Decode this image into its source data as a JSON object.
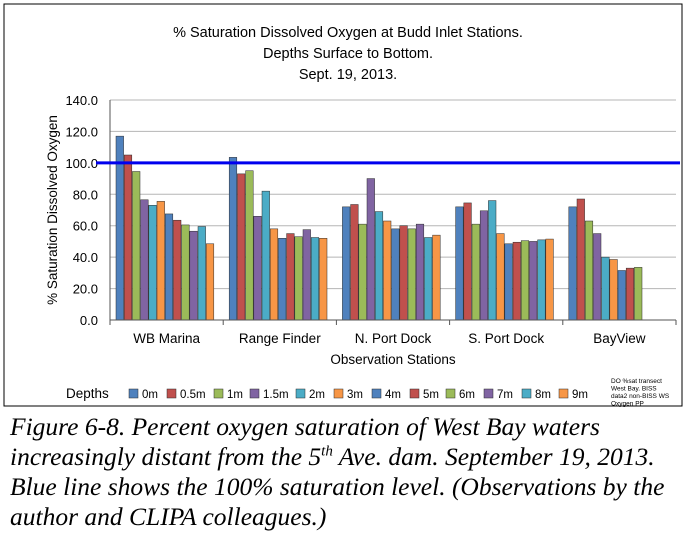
{
  "chart_data": {
    "type": "bar",
    "title_lines": [
      "% Saturation Dissolved Oxygen at Budd Inlet Stations.",
      "Depths Surface to Bottom.",
      "Sept. 19, 2013."
    ],
    "xlabel": "Observation Stations",
    "ylabel": "% Saturation Dissolved Oxygen",
    "ylim": [
      0,
      140
    ],
    "yticks": [
      "0.0",
      "20.0",
      "40.0",
      "60.0",
      "80.0",
      "100.0",
      "120.0",
      "140.0"
    ],
    "grid": true,
    "reference_line": {
      "value": 100,
      "color": "#0000ee"
    },
    "categories": [
      "WB Marina",
      "Range Finder",
      "N. Port Dock",
      "S. Port Dock",
      "BayView"
    ],
    "legend_title": "Depths",
    "legend_position": "bottom",
    "series": [
      {
        "name": "0m",
        "color": "#4f81bd",
        "values": [
          117,
          103.5,
          72,
          72,
          72
        ]
      },
      {
        "name": "0.5m",
        "color": "#c0504d",
        "values": [
          105,
          93,
          73.5,
          74.5,
          77
        ]
      },
      {
        "name": "1m",
        "color": "#9bbb59",
        "values": [
          94.5,
          95,
          61,
          61,
          63
        ]
      },
      {
        "name": "1.5m",
        "color": "#8064a2",
        "values": [
          76.5,
          66,
          90,
          69.5,
          55
        ]
      },
      {
        "name": "2m",
        "color": "#4bacc6",
        "values": [
          73,
          82,
          69,
          76,
          40
        ]
      },
      {
        "name": "3m",
        "color": "#f79646",
        "values": [
          75.5,
          58,
          63,
          55,
          38.5
        ]
      },
      {
        "name": "4m",
        "color": "#4f81bd",
        "values": [
          67.5,
          52,
          58,
          48.5,
          31.5
        ]
      },
      {
        "name": "5m",
        "color": "#c0504d",
        "values": [
          63.5,
          55,
          60,
          49.5,
          33
        ]
      },
      {
        "name": "6m",
        "color": "#9bbb59",
        "values": [
          60.5,
          53,
          58,
          50.5,
          33.5
        ]
      },
      {
        "name": "7m",
        "color": "#8064a2",
        "values": [
          56.5,
          57.5,
          61,
          50,
          null
        ]
      },
      {
        "name": "8m",
        "color": "#4bacc6",
        "values": [
          59.5,
          52.5,
          52.5,
          51,
          null
        ]
      },
      {
        "name": "9m",
        "color": "#f79646",
        "values": [
          48.5,
          52,
          54,
          51.5,
          null
        ]
      }
    ],
    "note_lines": [
      "DO %sat transect",
      "West Bay.  BISS",
      "data2 non-BISS WS",
      "Oxygen PP"
    ]
  },
  "caption": {
    "part1": "Figure 6-8. Percent oxygen saturation of West Bay waters increasingly distant from the 5",
    "sup": "th",
    "part2": " Ave. dam. September 19, 2013. Blue line shows the 100% saturation level. (Observations by the author and CLIPA colleagues.)"
  }
}
